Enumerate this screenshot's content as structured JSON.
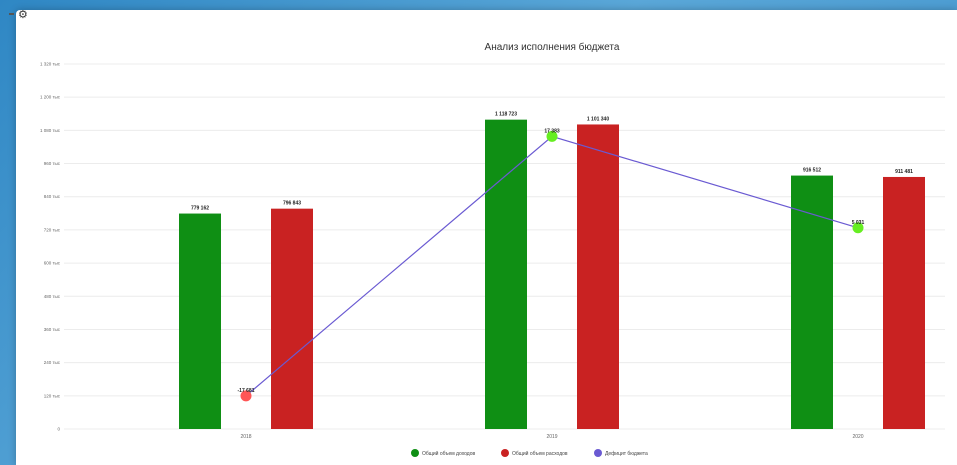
{
  "colors": {
    "income": "#0f8f14",
    "expense": "#c92222",
    "deficit_line": "#6a5ad2",
    "point_positive": "#66ee22",
    "point_negative": "#ff5555"
  },
  "chart_data": {
    "type": "bar",
    "title": "Анализ исполнения бюджета",
    "categories": [
      "2018",
      "2019",
      "2020"
    ],
    "ylim": [
      0,
      1320
    ],
    "y_ticks": [
      0,
      120,
      240,
      360,
      480,
      600,
      720,
      840,
      960,
      1080,
      1200,
      1320
    ],
    "y_tick_labels": [
      "0",
      "120 тыс",
      "240 тыс",
      "360 тыс",
      "480 тыс",
      "600 тыс",
      "720 тыс",
      "840 тыс",
      "960 тыс",
      "1 080 тыс",
      "1 200 тыс",
      "1 320 тыс"
    ],
    "series": [
      {
        "name": "Общий объем доходов",
        "kind": "bar",
        "values": [
          779162,
          1118723,
          916512
        ],
        "labels": [
          "779 162",
          "1 118 723",
          "916 512"
        ]
      },
      {
        "name": "Общий объем расходов",
        "kind": "bar",
        "values": [
          796843,
          1101340,
          911481
        ],
        "labels": [
          "796 843",
          "1 101 340",
          "911 481"
        ]
      },
      {
        "name": "Дефицит бюджета",
        "kind": "line",
        "values": [
          -17681,
          17383,
          5031
        ],
        "labels": [
          "-17 681",
          "17 383",
          "5 031"
        ]
      }
    ],
    "legend_position": "bottom-center",
    "grid": true
  }
}
